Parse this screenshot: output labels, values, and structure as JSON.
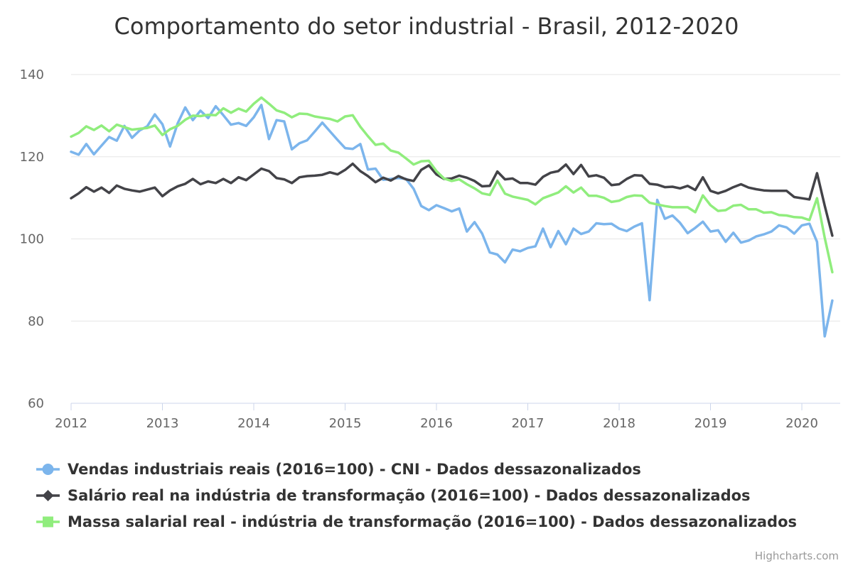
{
  "chart_data": {
    "type": "line",
    "title": "Comportamento do setor industrial - Brasil, 2012-2020",
    "xlabel": "",
    "ylabel": "",
    "ylim": [
      60,
      140
    ],
    "yticks": [
      "60",
      "80",
      "100",
      "120",
      "140"
    ],
    "xticks": [
      "2012",
      "2013",
      "2014",
      "2015",
      "2016",
      "2017",
      "2018",
      "2019",
      "2020"
    ],
    "xlim": [
      2012,
      2020.42
    ],
    "grid": "horizontal",
    "legend_position": "bottom",
    "credits": "Highcharts.com",
    "series": [
      {
        "name": "Vendas industriais reais (2016=100) - CNI - Dados dessazonalizados",
        "color": "#7cb5ec",
        "marker": "circle",
        "start": "2012-01",
        "values": [
          121.2,
          120.5,
          123.1,
          120.6,
          122.7,
          124.8,
          123.9,
          127.5,
          124.6,
          126.4,
          127.4,
          130.3,
          127.9,
          122.5,
          128.1,
          132.0,
          128.9,
          131.2,
          129.4,
          132.3,
          130.1,
          127.8,
          128.2,
          127.5,
          129.6,
          132.6,
          124.3,
          128.9,
          128.6,
          121.8,
          123.3,
          124.0,
          126.1,
          128.3,
          126.2,
          124.1,
          122.1,
          121.9,
          123.1,
          116.9,
          117.1,
          114.4,
          114.6,
          114.8,
          114.6,
          112.2,
          108.0,
          107.0,
          108.2,
          107.5,
          106.7,
          107.4,
          101.8,
          104.1,
          101.3,
          96.7,
          96.2,
          94.3,
          97.4,
          97.0,
          97.8,
          98.2,
          102.5,
          98.0,
          101.9,
          98.7,
          102.5,
          101.2,
          101.8,
          103.8,
          103.6,
          103.7,
          102.5,
          101.9,
          103.0,
          103.8,
          85.1,
          109.5,
          104.9,
          105.7,
          103.9,
          101.4,
          102.7,
          104.2,
          101.8,
          102.1,
          99.3,
          101.5,
          99.1,
          99.6,
          100.6,
          101.1,
          101.8,
          103.3,
          102.8,
          101.3,
          103.3,
          103.7,
          99.3,
          76.3,
          85.0
        ]
      },
      {
        "name": "Salário real na indústria de transformação (2016=100) - Dados dessazonalizados",
        "color": "#434348",
        "marker": "diamond",
        "start": "2012-01",
        "values": [
          109.9,
          111.1,
          112.6,
          111.5,
          112.5,
          111.2,
          113.0,
          112.2,
          111.8,
          111.5,
          112.0,
          112.5,
          110.4,
          111.8,
          112.8,
          113.4,
          114.6,
          113.3,
          114.0,
          113.6,
          114.6,
          113.6,
          115.0,
          114.3,
          115.7,
          117.1,
          116.5,
          114.8,
          114.5,
          113.6,
          115.0,
          115.3,
          115.4,
          115.6,
          116.2,
          115.7,
          116.8,
          118.3,
          116.5,
          115.3,
          113.8,
          114.9,
          114.2,
          115.3,
          114.5,
          114.1,
          116.8,
          117.9,
          115.7,
          114.6,
          114.7,
          115.4,
          114.9,
          114.1,
          112.8,
          112.9,
          116.4,
          114.5,
          114.7,
          113.6,
          113.6,
          113.2,
          115.1,
          116.1,
          116.5,
          118.1,
          115.8,
          118.0,
          115.2,
          115.5,
          114.9,
          113.1,
          113.3,
          114.6,
          115.5,
          115.4,
          113.4,
          113.2,
          112.6,
          112.7,
          112.3,
          112.9,
          111.9,
          115.0,
          111.7,
          111.1,
          111.7,
          112.6,
          113.3,
          112.5,
          112.1,
          111.8,
          111.7,
          111.7,
          111.7,
          110.2,
          109.9,
          109.6,
          116.0,
          108.1,
          100.8
        ]
      },
      {
        "name": "Massa salarial real - indústria de transformação (2016=100) - Dados dessazonalizados",
        "color": "#90ed7d",
        "marker": "square",
        "start": "2012-01",
        "values": [
          124.9,
          125.8,
          127.4,
          126.5,
          127.6,
          126.2,
          127.8,
          127.2,
          126.6,
          126.8,
          127.0,
          127.6,
          125.3,
          126.7,
          127.5,
          129.0,
          130.0,
          129.9,
          130.2,
          130.1,
          131.8,
          130.7,
          131.7,
          131.0,
          132.9,
          134.4,
          132.9,
          131.3,
          130.7,
          129.6,
          130.5,
          130.4,
          129.8,
          129.5,
          129.2,
          128.6,
          129.8,
          130.1,
          127.3,
          125.0,
          122.9,
          123.2,
          121.5,
          121.0,
          119.6,
          118.1,
          118.9,
          119.0,
          116.5,
          114.7,
          114.1,
          114.5,
          113.3,
          112.3,
          111.1,
          110.7,
          114.2,
          111.0,
          110.3,
          109.9,
          109.5,
          108.4,
          109.9,
          110.6,
          111.3,
          112.8,
          111.3,
          112.5,
          110.5,
          110.5,
          110.0,
          109.0,
          109.3,
          110.2,
          110.6,
          110.5,
          108.8,
          108.4,
          108.0,
          107.7,
          107.7,
          107.7,
          106.5,
          110.6,
          108.2,
          106.8,
          107.0,
          108.1,
          108.3,
          107.2,
          107.2,
          106.4,
          106.5,
          105.8,
          105.7,
          105.3,
          105.2,
          104.6,
          109.9,
          100.3,
          91.9
        ]
      }
    ]
  }
}
